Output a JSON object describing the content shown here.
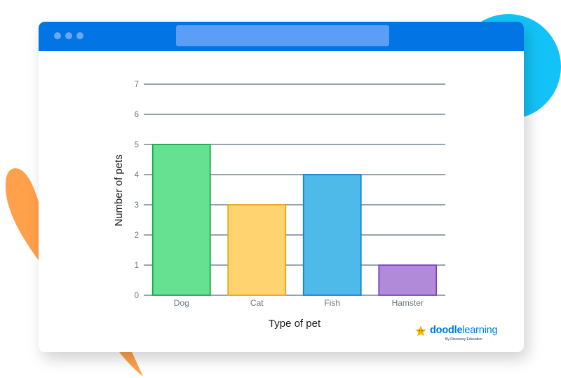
{
  "chart_data": {
    "type": "bar",
    "categories": [
      "Dog",
      "Cat",
      "Fish",
      "Hamster"
    ],
    "values": [
      5,
      3,
      4,
      1
    ],
    "bar_colors": [
      "#66e192",
      "#ffd470",
      "#4ebae9",
      "#b18ad9"
    ],
    "bar_edge_colors": [
      "#16a84c",
      "#e6a514",
      "#1a7fd0",
      "#7a45c0"
    ],
    "title": "",
    "xlabel": "Type of pet",
    "ylabel": "Number of pets",
    "ylim": [
      0,
      7
    ],
    "yticks": [
      "0",
      "1",
      "2",
      "3",
      "4",
      "5",
      "6",
      "7"
    ],
    "grid": true
  },
  "logo": {
    "brand_bold": "doodle",
    "brand_light": "learning",
    "tagline": "By Discovery Education"
  },
  "colors": {
    "titlebar": "#0175e3",
    "url_bar": "#5b9ef7",
    "accent_cyan": "#13c3f7",
    "accent_orange": "#ffa14b",
    "logo_star": "#f7b500"
  }
}
